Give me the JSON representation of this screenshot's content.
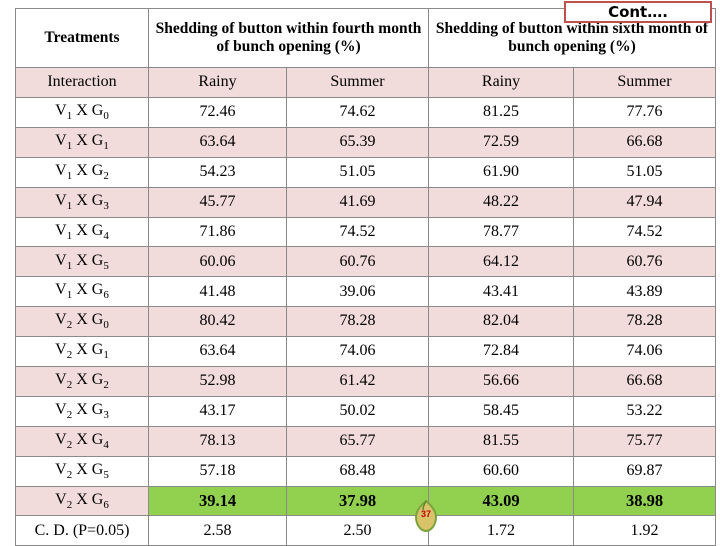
{
  "cont_label": "Cont….",
  "page_number": "37",
  "headers": {
    "treatments": "Treatments",
    "fourth_month": "Shedding of button within fourth month of bunch opening (%)",
    "sixth_month": "Shedding of button within sixth month of bunch opening (%)"
  },
  "subheaders": {
    "interaction": "Interaction",
    "rainy_1": "Rainy",
    "summer_1": "Summer",
    "rainy_2": "Rainy",
    "summer_2": "Summer"
  },
  "rows": [
    {
      "v": "V",
      "vs": "1",
      "x": " X ",
      "g": "G",
      "gs": "0",
      "r4": "72.46",
      "s4": "74.62",
      "r6": "81.25",
      "s6": "77.76"
    },
    {
      "v": "V",
      "vs": "1",
      "x": " X ",
      "g": "G",
      "gs": "1",
      "r4": "63.64",
      "s4": "65.39",
      "r6": "72.59",
      "s6": "66.68"
    },
    {
      "v": "V",
      "vs": "1",
      "x": " X ",
      "g": "G",
      "gs": "2",
      "r4": "54.23",
      "s4": "51.05",
      "r6": "61.90",
      "s6": "51.05"
    },
    {
      "v": "V",
      "vs": "1",
      "x": " X ",
      "g": "G",
      "gs": "3",
      "r4": "45.77",
      "s4": "41.69",
      "r6": "48.22",
      "s6": "47.94"
    },
    {
      "v": "V",
      "vs": "1",
      "x": " X ",
      "g": "G",
      "gs": "4",
      "r4": "71.86",
      "s4": "74.52",
      "r6": "78.77",
      "s6": "74.52"
    },
    {
      "v": "V",
      "vs": "1",
      "x": " X ",
      "g": "G",
      "gs": "5",
      "r4": "60.06",
      "s4": "60.76",
      "r6": "64.12",
      "s6": "60.76"
    },
    {
      "v": "V",
      "vs": "1",
      "x": " X ",
      "g": "G",
      "gs": "6",
      "r4": "41.48",
      "s4": "39.06",
      "r6": "43.41",
      "s6": "43.89"
    },
    {
      "v": "V",
      "vs": "2",
      "x": " X ",
      "g": "G",
      "gs": "0",
      "r4": "80.42",
      "s4": "78.28",
      "r6": "82.04",
      "s6": "78.28"
    },
    {
      "v": "V",
      "vs": "2",
      "x": " X ",
      "g": "G",
      "gs": "1",
      "r4": "63.64",
      "s4": "74.06",
      "r6": "72.84",
      "s6": "74.06"
    },
    {
      "v": "V",
      "vs": "2",
      "x": " X ",
      "g": "G",
      "gs": "2",
      "r4": "52.98",
      "s4": "61.42",
      "r6": "56.66",
      "s6": "66.68"
    },
    {
      "v": "V",
      "vs": "2",
      "x": " X ",
      "g": "G",
      "gs": "3",
      "r4": "43.17",
      "s4": "50.02",
      "r6": "58.45",
      "s6": "53.22"
    },
    {
      "v": "V",
      "vs": "2",
      "x": " X ",
      "g": "G",
      "gs": "4",
      "r4": "78.13",
      "s4": "65.77",
      "r6": "81.55",
      "s6": "75.77"
    },
    {
      "v": "V",
      "vs": "2",
      "x": " X ",
      "g": "G",
      "gs": "5",
      "r4": "57.18",
      "s4": "68.48",
      "r6": "60.60",
      "s6": "69.87"
    },
    {
      "v": "V",
      "vs": "2",
      "x": " X ",
      "g": "G",
      "gs": "6",
      "r4": "39.14",
      "s4": "37.98",
      "r6": "43.09",
      "s6": "38.98"
    }
  ],
  "highlight_row_index": 13,
  "cd_row": {
    "label": "C. D. (P=0.05)",
    "r4": "2.58",
    "s4": "2.50",
    "r6": "1.72",
    "s6": "1.92"
  },
  "colors": {
    "band_pink": "#f2dcdb",
    "highlight_green": "#92d050",
    "cont_border": "#c0504d"
  }
}
